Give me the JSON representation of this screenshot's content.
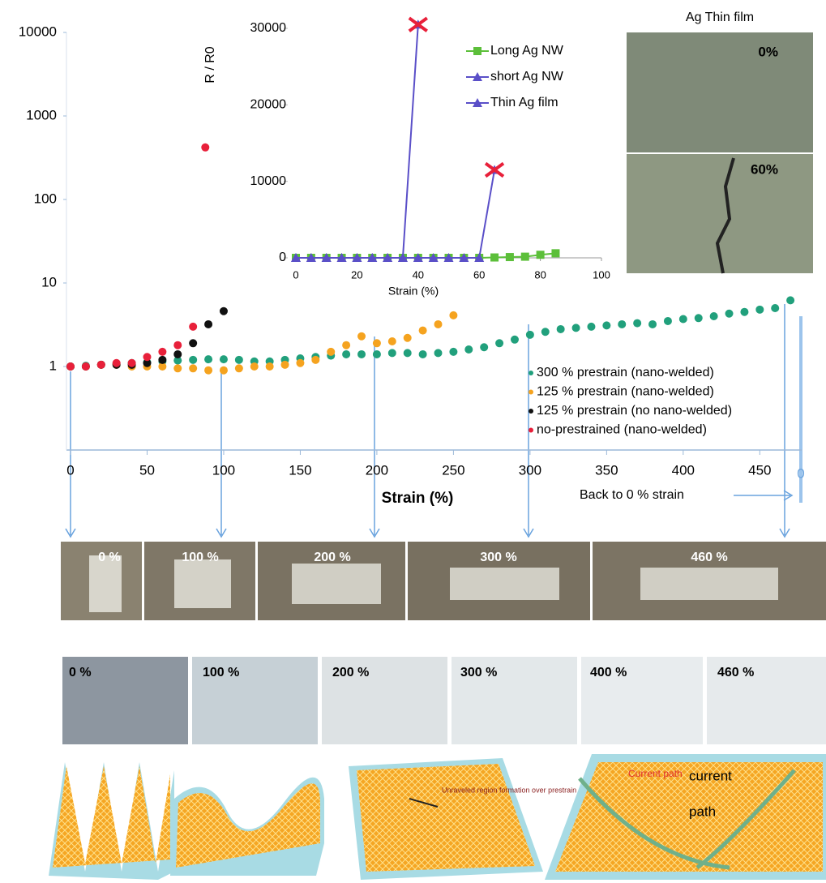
{
  "chart_data": [
    {
      "type": "scatter",
      "xlabel": "Strain (%)",
      "xlim": [
        0,
        480
      ],
      "ylim": [
        0.1,
        10000
      ],
      "yscale": "log",
      "xticks": [
        0,
        50,
        100,
        150,
        200,
        250,
        300,
        350,
        400,
        450
      ],
      "yticks": [
        1,
        10,
        100,
        1000,
        10000
      ],
      "annotation": "Back to 0 % strain",
      "back_label": "0",
      "series": [
        {
          "name": "300 % prestrain (nano-welded)",
          "color": "#21a07c",
          "x": [
            0,
            10,
            20,
            30,
            40,
            50,
            60,
            70,
            80,
            90,
            100,
            110,
            120,
            130,
            140,
            150,
            160,
            170,
            180,
            190,
            200,
            210,
            220,
            230,
            240,
            250,
            260,
            270,
            280,
            290,
            300,
            310,
            320,
            330,
            340,
            350,
            360,
            370,
            380,
            390,
            400,
            410,
            420,
            430,
            440,
            450,
            460,
            470
          ],
          "values": [
            1,
            1.02,
            1.05,
            1.08,
            1.1,
            1.12,
            1.15,
            1.18,
            1.2,
            1.22,
            1.22,
            1.2,
            1.15,
            1.15,
            1.2,
            1.25,
            1.3,
            1.35,
            1.4,
            1.4,
            1.4,
            1.45,
            1.45,
            1.4,
            1.45,
            1.5,
            1.6,
            1.7,
            1.9,
            2.1,
            2.4,
            2.6,
            2.8,
            2.9,
            3,
            3.1,
            3.2,
            3.3,
            3.2,
            3.5,
            3.7,
            3.8,
            4,
            4.3,
            4.5,
            4.8,
            5,
            6.2
          ]
        },
        {
          "name": "125 % prestrain (nano-welded)",
          "color": "#f5a31f",
          "x": [
            0,
            10,
            20,
            30,
            40,
            50,
            60,
            70,
            80,
            90,
            100,
            110,
            120,
            130,
            140,
            150,
            160,
            170,
            180,
            190,
            200,
            210,
            220,
            230,
            240,
            250
          ],
          "values": [
            1,
            1,
            1.05,
            1.05,
            1,
            1,
            1,
            0.95,
            0.95,
            0.9,
            0.9,
            0.95,
            1,
            1,
            1.05,
            1.1,
            1.2,
            1.5,
            1.8,
            2.3,
            1.9,
            2,
            2.2,
            2.7,
            3.2,
            4.1
          ]
        },
        {
          "name": "125 % prestrain (no nano-welded)",
          "color": "#111111",
          "x": [
            0,
            10,
            20,
            30,
            40,
            50,
            60,
            70,
            80,
            90,
            100
          ],
          "values": [
            1,
            1,
            1.05,
            1.05,
            1.05,
            1.1,
            1.2,
            1.4,
            1.9,
            3.2,
            4.6
          ]
        },
        {
          "name": "no-prestrained (nano-welded)",
          "color": "#e8203a",
          "x": [
            0,
            10,
            20,
            30,
            40,
            50,
            60,
            70,
            80,
            88
          ],
          "values": [
            1,
            1,
            1.05,
            1.1,
            1.1,
            1.3,
            1.5,
            1.8,
            3,
            420
          ]
        }
      ]
    },
    {
      "type": "line",
      "ylabel": "R / R0",
      "xlabel": "Strain (%)",
      "xlim": [
        0,
        100
      ],
      "ylim": [
        0,
        30000
      ],
      "xticks": [
        0,
        20,
        40,
        60,
        80,
        100
      ],
      "yticks": [
        0,
        10000,
        20000,
        30000
      ],
      "series": [
        {
          "name": "Long Ag NW",
          "color": "#5cbf3a",
          "marker": "square",
          "x": [
            0,
            5,
            10,
            15,
            20,
            25,
            30,
            35,
            40,
            45,
            50,
            55,
            60,
            65,
            70,
            75,
            80,
            85
          ],
          "values": [
            0,
            0,
            0,
            0,
            0,
            0,
            0,
            0,
            0,
            0,
            0,
            0,
            0,
            50,
            100,
            150,
            400,
            600
          ]
        },
        {
          "name": "short Ag NW",
          "color": "#5a4fc8",
          "marker": "triangle",
          "x": [
            0,
            5,
            10,
            15,
            20,
            25,
            30,
            35,
            40,
            45,
            50,
            55,
            60,
            65
          ],
          "values": [
            0,
            0,
            0,
            0,
            0,
            0,
            0,
            0,
            0,
            0,
            0,
            0,
            0,
            11500
          ]
        },
        {
          "name": "Thin Ag film",
          "color": "#5a4fc8",
          "marker": "triangle",
          "x": [
            0,
            5,
            10,
            15,
            20,
            25,
            30,
            35,
            40
          ],
          "values": [
            0,
            0,
            0,
            0,
            0,
            0,
            0,
            0,
            30500
          ]
        }
      ]
    }
  ],
  "thin_film": {
    "title": "Ag Thin film",
    "labels": [
      "0%",
      "60%"
    ]
  },
  "stretch_photos": [
    "0 %",
    "100 %",
    "200 %",
    "300 %",
    "460 %"
  ],
  "micrographs": [
    "0 %",
    "100 %",
    "200 %",
    "300 %",
    "400 %",
    "460 %"
  ],
  "illustrations": {
    "note": "Unraveled region formation over prestrain",
    "current_path": "Current path",
    "current": "current",
    "path": "path"
  }
}
